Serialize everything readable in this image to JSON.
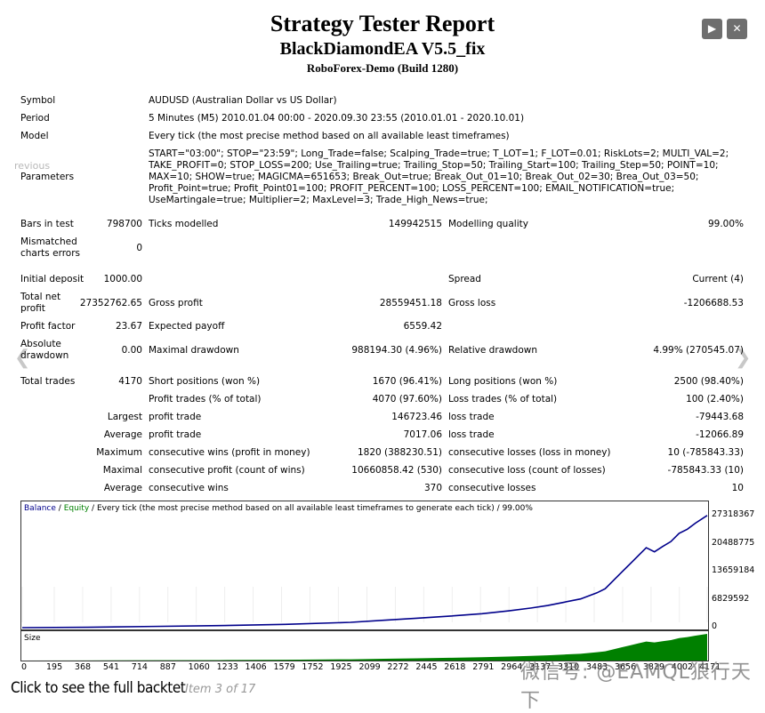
{
  "header": {
    "title": "Strategy Tester Report",
    "subtitle": "BlackDiamondEA V5.5_fix",
    "broker": "RoboForex-Demo (Build 1280)"
  },
  "nav": {
    "play_icon": "play-icon",
    "close_icon": "close-icon",
    "prev_label": "revious"
  },
  "info": {
    "symbol_label": "Symbol",
    "symbol": "AUDUSD (Australian Dollar vs US Dollar)",
    "period_label": "Period",
    "period": "5 Minutes (M5) 2010.01.04 00:00 - 2020.09.30 23:55 (2010.01.01 - 2020.10.01)",
    "model_label": "Model",
    "model": "Every tick (the most precise method based on all available least timeframes)",
    "parameters_label": "Parameters",
    "parameters": "START=\"03:00\"; STOP=\"23:59\"; Long_Trade=false; Scalping_Trade=true; T_LOT=1; F_LOT=0.01; RiskLots=2; MULTI_VAL=2; TAKE_PROFIT=0; STOP_LOSS=200; Use_Trailing=true; Trailing_Stop=50; Trailing_Start=100; Trailing_Step=50; POINT=10; MAX=10; SHOW=true; MAGICMA=651653; Break_Out=true; Break_Out_01=10; Break_Out_02=30; Brea_Out_03=50; Profit_Point=true; Profit_Point01=100; PROFIT_PERCENT=100; LOSS_PERCENT=100; EMAIL_NOTIFICATION=true; UseMartingale=true; Multiplier=2; MaxLevel=3; Trade_High_News=true;"
  },
  "stats": {
    "bars_label": "Bars in test",
    "bars": "798700",
    "ticks_label": "Ticks modelled",
    "ticks": "149942515",
    "quality_label": "Modelling quality",
    "quality": "99.00%",
    "mismatch_label_1": "Mismatched",
    "mismatch_label_2": "charts errors",
    "mismatch": "0",
    "deposit_label": "Initial deposit",
    "deposit": "1000.00",
    "spread_label": "Spread",
    "spread": "Current (4)",
    "net_label_1": "Total net",
    "net_label_2": "profit",
    "net": "27352762.65",
    "gross_profit_label": "Gross profit",
    "gross_profit": "28559451.18",
    "gross_loss_label": "Gross loss",
    "gross_loss": "-1206688.53",
    "pf_label": "Profit factor",
    "pf": "23.67",
    "payoff_label": "Expected payoff",
    "payoff": "6559.42",
    "abs_dd_label_1": "Absolute",
    "abs_dd_label_2": "drawdown",
    "abs_dd": "0.00",
    "max_dd_label": "Maximal drawdown",
    "max_dd": "988194.30 (4.96%)",
    "rel_dd_label": "Relative drawdown",
    "rel_dd": "4.99% (270545.07)",
    "trades_label": "Total trades",
    "trades": "4170",
    "short_label": "Short positions (won %)",
    "short": "1670 (96.41%)",
    "long_label": "Long positions (won %)",
    "long": "2500 (98.40%)",
    "profit_trades_label": "Profit trades (% of total)",
    "profit_trades": "4070 (97.60%)",
    "loss_trades_label": "Loss trades (% of total)",
    "loss_trades": "100 (2.40%)",
    "largest_label": "Largest",
    "largest_profit_label": "profit trade",
    "largest_profit": "146723.46",
    "largest_loss_label": "loss trade",
    "largest_loss": "-79443.68",
    "average_label": "Average",
    "average_profit_label": "profit trade",
    "average_profit": "7017.06",
    "average_loss_label": "loss trade",
    "average_loss": "-12066.89",
    "maximum_label": "Maximum",
    "max_cons_wins_label": "consecutive wins (profit in money)",
    "max_cons_wins": "1820 (388230.51)",
    "max_cons_losses_label": "consecutive losses (loss in money)",
    "max_cons_losses": "10 (-785843.33)",
    "maximal_label": "Maximal",
    "maxl_cons_profit_label": "consecutive profit (count of wins)",
    "maxl_cons_profit": "10660858.42 (530)",
    "maxl_cons_loss_label": "consecutive loss (count of losses)",
    "maxl_cons_loss": "-785843.33 (10)",
    "avg2_label": "Average",
    "avg_cons_wins_label": "consecutive wins",
    "avg_cons_wins": "370",
    "avg_cons_losses_label": "consecutive losses",
    "avg_cons_losses": "10"
  },
  "chart_data": {
    "type": "line",
    "legend": [
      "Balance",
      "Equity"
    ],
    "description_text": "Every tick (the most precise method based on all available least timeframes to generate each tick)",
    "quality_text": "99.00%",
    "colors": {
      "balance": "#00008b",
      "equity": "#008000",
      "size": "#008000"
    },
    "x_ticks": [
      "0",
      "195",
      "368",
      "541",
      "714",
      "887",
      "1060",
      "1233",
      "1406",
      "1579",
      "1752",
      "1925",
      "2099",
      "2272",
      "2445",
      "2618",
      "2791",
      "2964",
      "3137",
      "3310",
      "3483",
      "3656",
      "3829",
      "4002",
      "4171"
    ],
    "y_ticks": [
      "27318367",
      "20488775",
      "13659184",
      "6829592",
      "0"
    ],
    "ylim": [
      0,
      27318367
    ],
    "xlim": [
      0,
      4171
    ],
    "series": [
      {
        "name": "Balance",
        "x": [
          0,
          400,
          800,
          1200,
          1600,
          2000,
          2200,
          2400,
          2600,
          2800,
          2964,
          3100,
          3200,
          3300,
          3400,
          3500,
          3550,
          3600,
          3650,
          3700,
          3750,
          3800,
          3850,
          3900,
          3950,
          4000,
          4050,
          4100,
          4171
        ],
        "y": [
          1000,
          100000,
          300000,
          500000,
          800000,
          1300000,
          1800000,
          2300000,
          2800000,
          3400000,
          4100000,
          4800000,
          5400000,
          6200000,
          7000000,
          8500000,
          9500000,
          11500000,
          13500000,
          15500000,
          17500000,
          19500000,
          18500000,
          19800000,
          21000000,
          23000000,
          24000000,
          25500000,
          27352762
        ]
      }
    ],
    "size_panel_label": "Size"
  },
  "footer": {
    "caption": "Click to see the full backtet",
    "item": "Item 3 of 17",
    "watermark": "微信号: @EAMQL狼行天下"
  }
}
